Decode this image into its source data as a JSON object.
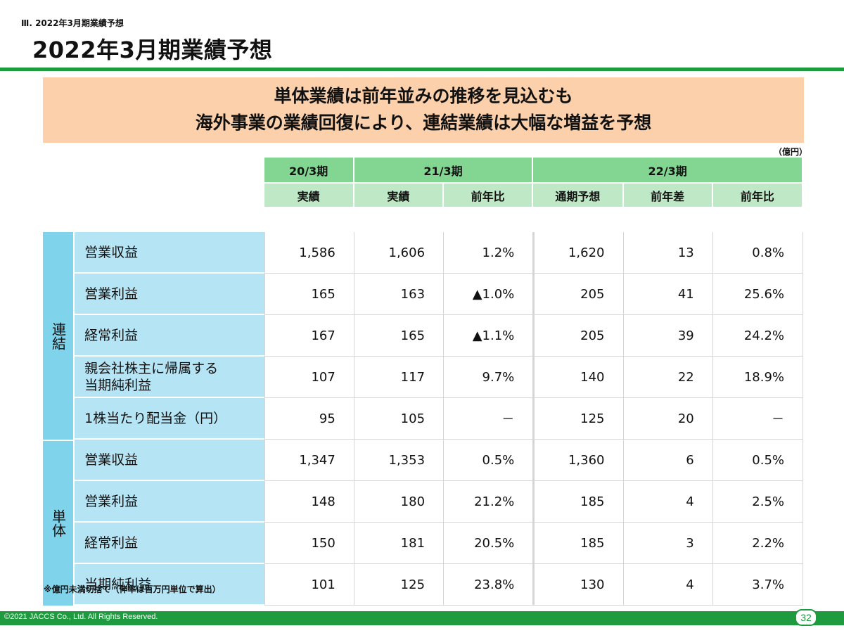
{
  "section_label": "Ⅲ. 2022年3月期業績予想",
  "page_title": "2022年3月期業績予想",
  "headline": {
    "line1": "単体業績は前年並みの推移を見込むも",
    "line2": "海外事業の業績回復により、連結業績は大幅な増益を予想"
  },
  "unit": "（億円）",
  "columns": {
    "fy20": "20/3期",
    "fy21": "21/3期",
    "fy22": "22/3期",
    "sub": [
      "実績",
      "実績",
      "前年比",
      "通期予想",
      "前年差",
      "前年比"
    ]
  },
  "groups": [
    {
      "name": "連結",
      "rows": [
        {
          "label": "営業収益",
          "values": [
            "1,586",
            "1,606",
            "1.2%",
            "1,620",
            "13",
            "0.8%"
          ]
        },
        {
          "label": "営業利益",
          "values": [
            "165",
            "163",
            "▲1.0%",
            "205",
            "41",
            "25.6%"
          ]
        },
        {
          "label": "経常利益",
          "values": [
            "167",
            "165",
            "▲1.1%",
            "205",
            "39",
            "24.2%"
          ]
        },
        {
          "label": "親会社株主に帰属する当期純利益",
          "label_line1": "親会社株主に帰属する",
          "label_line2": "当期純利益",
          "values": [
            "107",
            "117",
            "9.7%",
            "140",
            "22",
            "18.9%"
          ]
        },
        {
          "label": "1株当たり配当金（円）",
          "values": [
            "95",
            "105",
            "－",
            "125",
            "20",
            "－"
          ]
        }
      ]
    },
    {
      "name": "単体",
      "rows": [
        {
          "label": "営業収益",
          "values": [
            "1,347",
            "1,353",
            "0.5%",
            "1,360",
            "6",
            "0.5%"
          ]
        },
        {
          "label": "営業利益",
          "values": [
            "148",
            "180",
            "21.2%",
            "185",
            "4",
            "2.5%"
          ]
        },
        {
          "label": "経常利益",
          "values": [
            "150",
            "181",
            "20.5%",
            "185",
            "3",
            "2.2%"
          ]
        },
        {
          "label": "当期純利益",
          "values": [
            "101",
            "125",
            "23.8%",
            "130",
            "4",
            "3.7%"
          ]
        }
      ]
    }
  ],
  "footnote": "※億円未満切捨て（伸率は百万円単位で算出）",
  "copyright": "©2021 JACCS Co., Ltd. All Rights Reserved.",
  "page_number": "32"
}
